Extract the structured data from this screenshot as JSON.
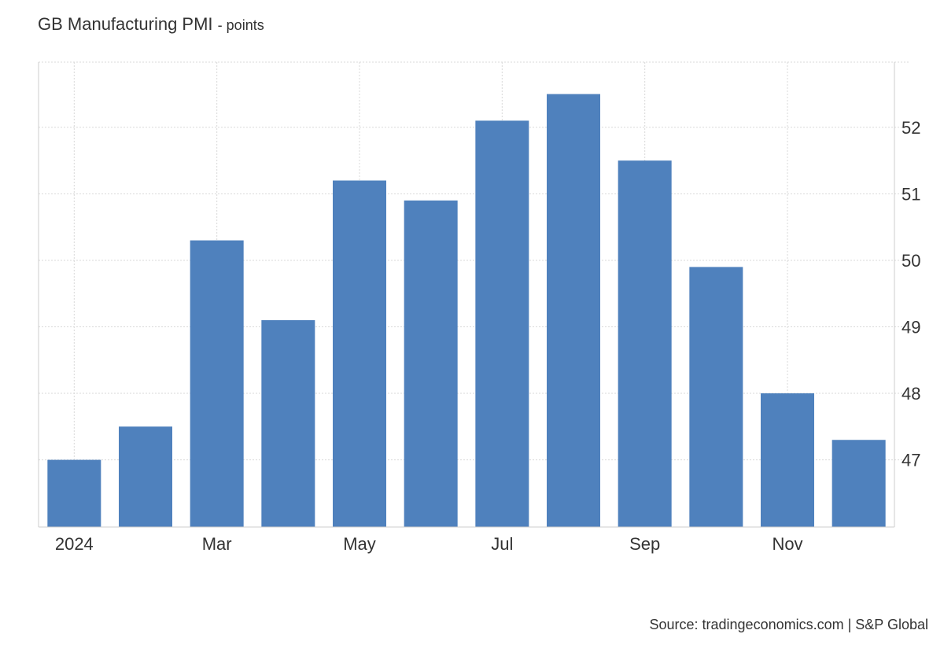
{
  "title": "GB Manufacturing PMI",
  "unit_label": "- points",
  "source": "Source: tradingeconomics.com | S&P Global",
  "colors": {
    "bar": "#4f81bd",
    "grid": "#d9d9d9",
    "axis": "#cccccc",
    "text": "#333333"
  },
  "chart_data": {
    "type": "bar",
    "title": "GB Manufacturing PMI",
    "ylabel": "points",
    "categories": [
      "2024-01",
      "2024-02",
      "2024-03",
      "2024-04",
      "2024-05",
      "2024-06",
      "2024-07",
      "2024-08",
      "2024-09",
      "2024-10",
      "2024-11",
      "2024-12"
    ],
    "values": [
      47.0,
      47.5,
      50.3,
      49.1,
      51.2,
      50.9,
      52.1,
      52.5,
      51.5,
      49.9,
      48.0,
      47.3
    ],
    "x_tick_labels": [
      {
        "index": 0,
        "label": "2024"
      },
      {
        "index": 2,
        "label": "Mar"
      },
      {
        "index": 4,
        "label": "May"
      },
      {
        "index": 6,
        "label": "Jul"
      },
      {
        "index": 8,
        "label": "Sep"
      },
      {
        "index": 10,
        "label": "Nov"
      }
    ],
    "y_ticks": [
      47,
      48,
      49,
      50,
      51,
      52
    ],
    "ylim": [
      45.99,
      52.98
    ],
    "grid": true,
    "y_axis_side": "right",
    "legend": "none"
  }
}
